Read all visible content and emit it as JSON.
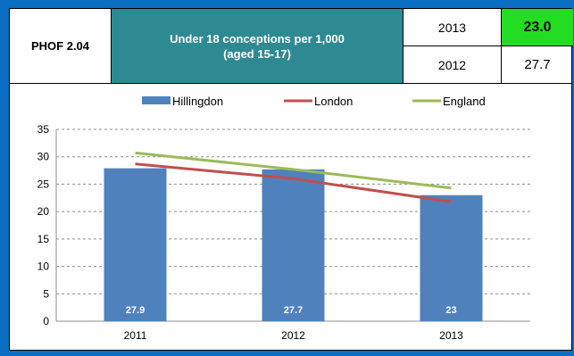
{
  "header": {
    "code": "PHOF 2.04",
    "indicator_line1": "Under 18 conceptions per 1,000",
    "indicator_line2": "(aged 15-17)",
    "rows": [
      {
        "year": "2013",
        "value": "23.0"
      },
      {
        "year": "2012",
        "value": "27.7"
      }
    ],
    "highlight_color": "#22dd22"
  },
  "chart_data": {
    "type": "bar",
    "categories": [
      "2011",
      "2012",
      "2013"
    ],
    "series": [
      {
        "name": "Hillingdon",
        "type": "bar",
        "values": [
          27.9,
          27.7,
          23
        ],
        "labels": [
          "27.9",
          "27.7",
          "23"
        ],
        "color": "#4f81bd"
      },
      {
        "name": "London",
        "type": "line",
        "values": [
          28.7,
          26.0,
          21.8
        ],
        "color": "#c0504d"
      },
      {
        "name": "England",
        "type": "line",
        "values": [
          30.7,
          27.7,
          24.3
        ],
        "color": "#9bbb59"
      }
    ],
    "y_ticks": [
      "0",
      "5",
      "10",
      "15",
      "20",
      "25",
      "30",
      "35"
    ],
    "ylim": [
      0,
      35
    ],
    "grid": true,
    "legend_position": "top"
  }
}
